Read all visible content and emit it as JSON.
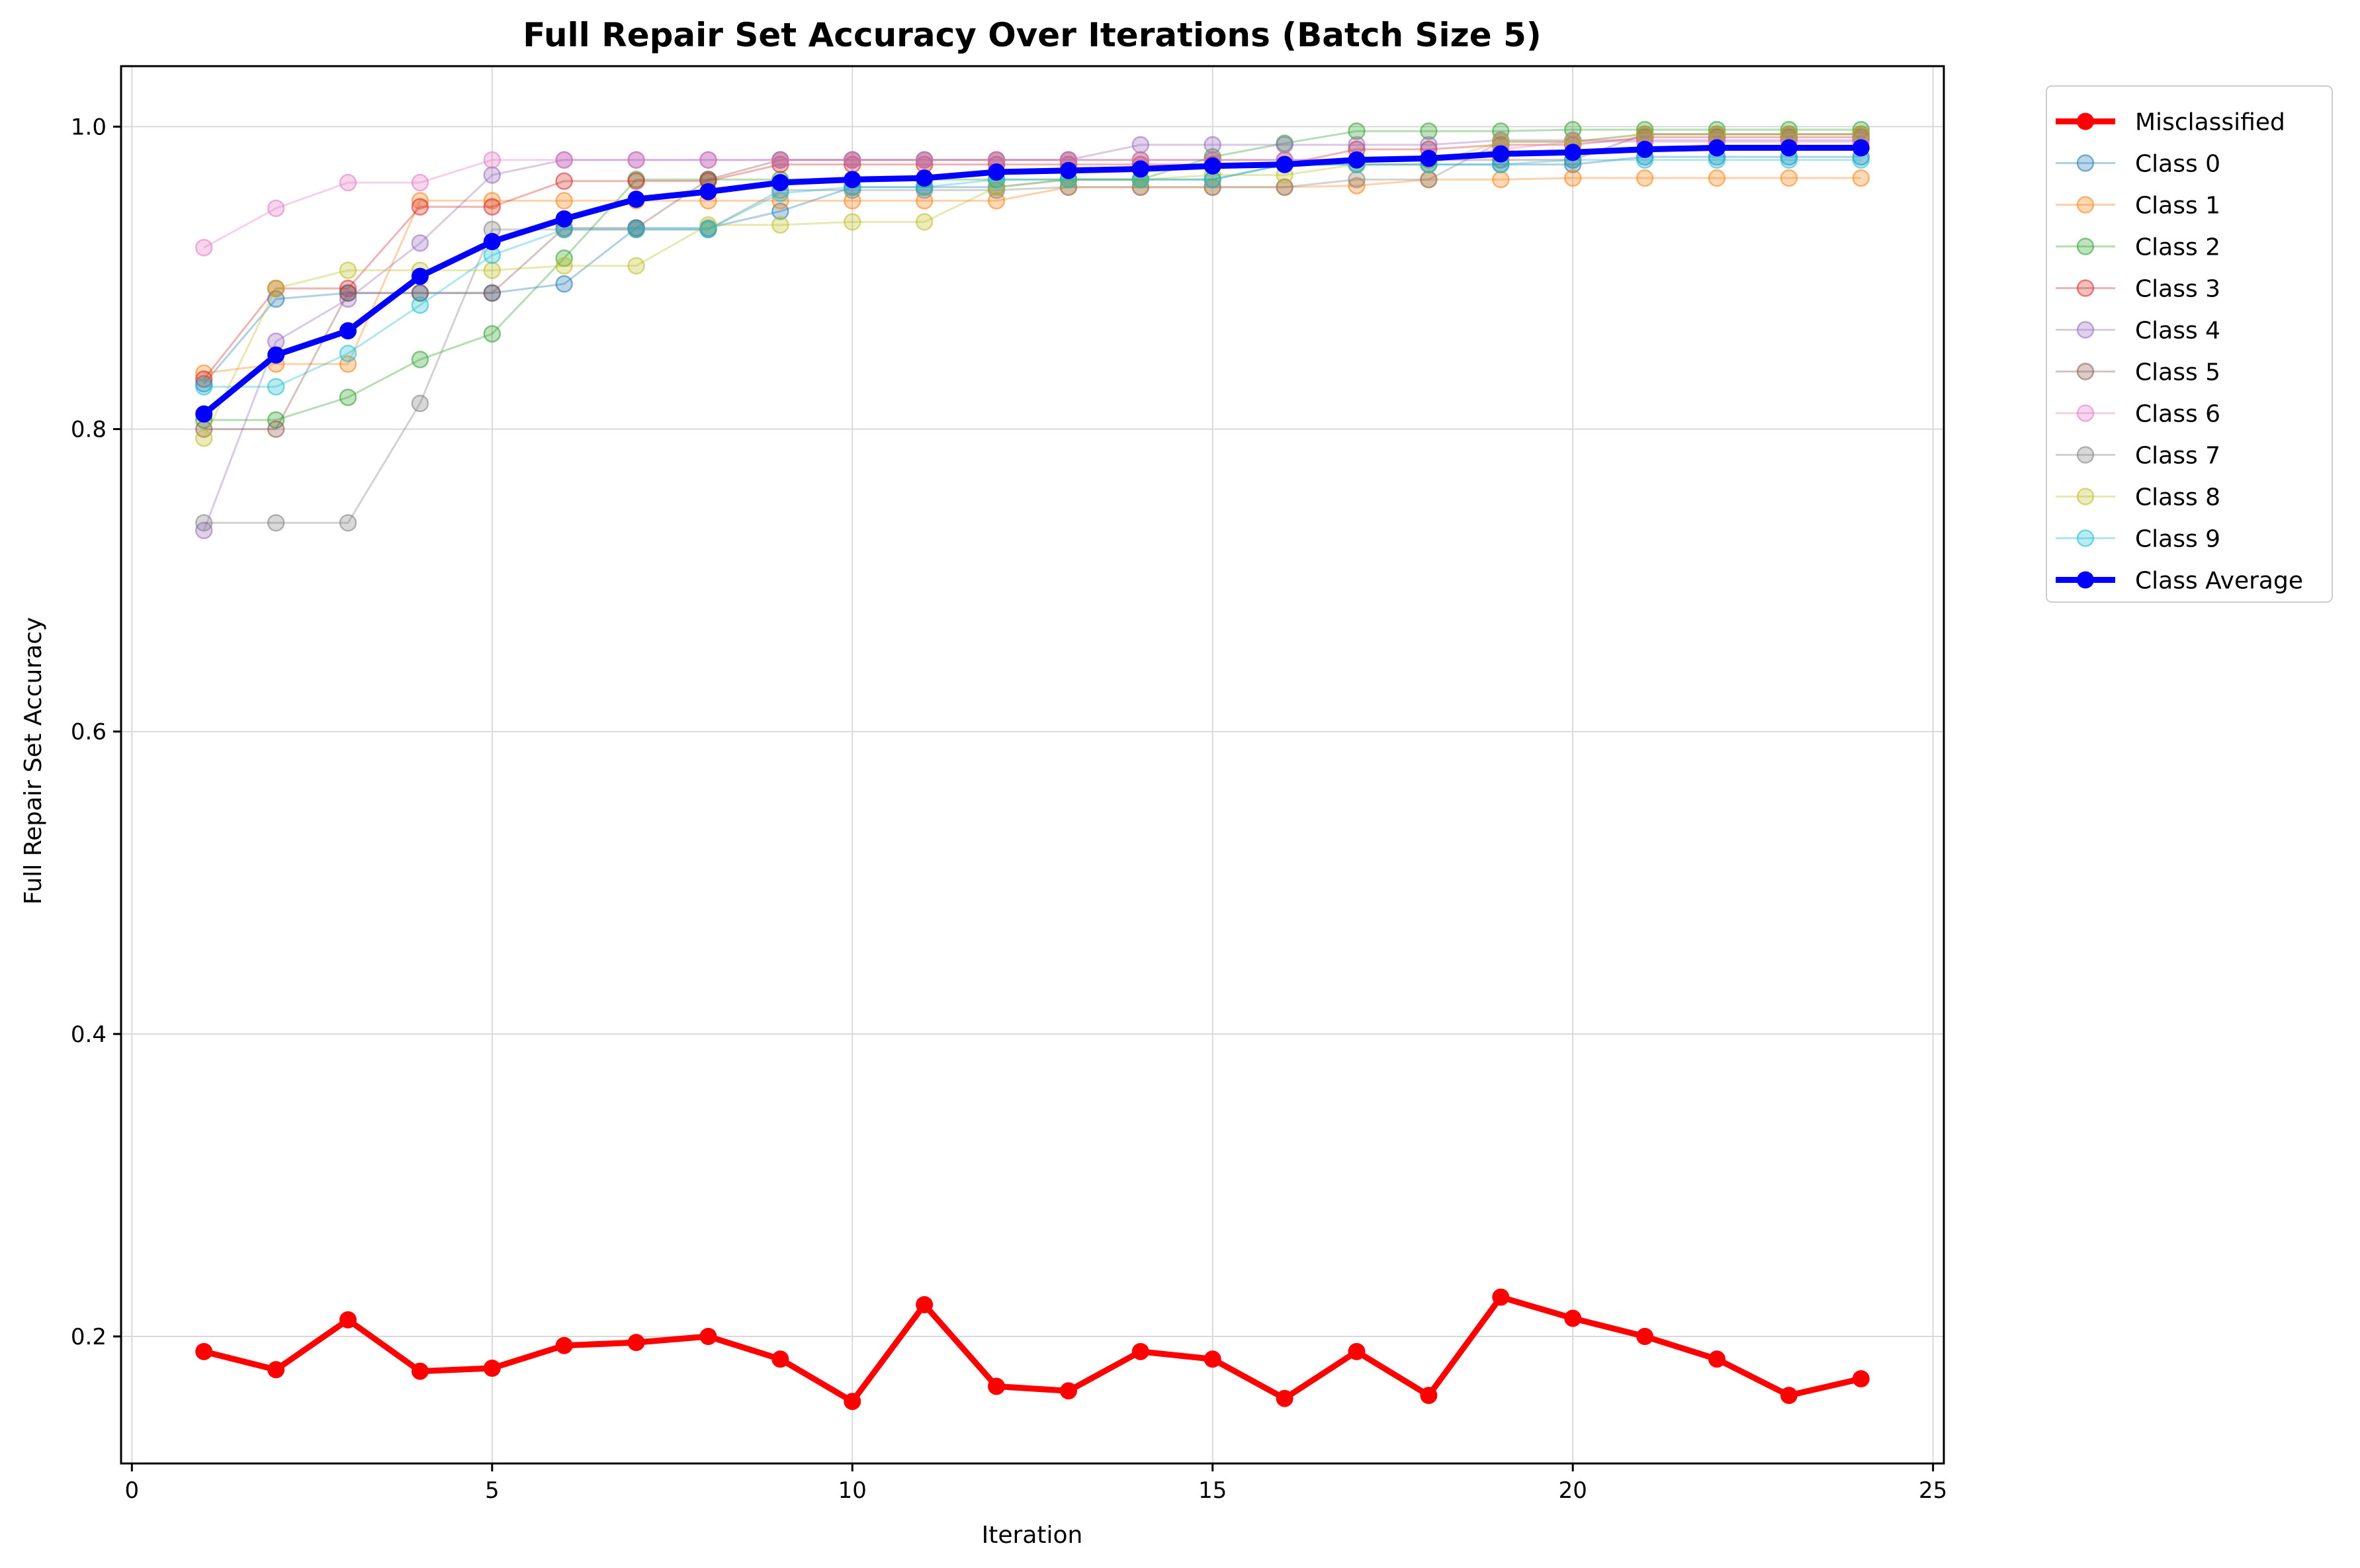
{
  "chart_data": {
    "type": "line",
    "title": "Full Repair Set Accuracy Over Iterations (Batch Size 5)",
    "xlabel": "Iteration",
    "ylabel": "Full Repair Set Accuracy",
    "xlim": [
      -0.15,
      25.15
    ],
    "ylim": [
      0.116,
      1.04
    ],
    "xticks": [
      0,
      5,
      10,
      15,
      20,
      25
    ],
    "xtick_labels": [
      "0",
      "5",
      "10",
      "15",
      "20",
      "25"
    ],
    "yticks": [
      0.2,
      0.4,
      0.6,
      0.8,
      1.0
    ],
    "ytick_labels": [
      "0.2",
      "0.4",
      "0.6",
      "0.8",
      "1.0"
    ],
    "grid": true,
    "legend_position": "outside-top-right",
    "x": [
      1,
      2,
      3,
      4,
      5,
      6,
      7,
      8,
      9,
      10,
      11,
      12,
      13,
      14,
      15,
      16,
      17,
      18,
      19,
      20,
      21,
      22,
      23,
      24
    ],
    "series": [
      {
        "name": "Misclassified",
        "color": "#ff0000",
        "emphasis": true,
        "values": [
          0.19,
          0.178,
          0.211,
          0.177,
          0.179,
          0.194,
          0.196,
          0.2,
          0.185,
          0.157,
          0.221,
          0.167,
          0.164,
          0.19,
          0.185,
          0.159,
          0.19,
          0.161,
          0.226,
          0.212,
          0.2,
          0.185,
          0.161,
          0.172
        ]
      },
      {
        "name": "Class 0",
        "color": "#1f77b4",
        "values": [
          0.83,
          0.886,
          0.89,
          0.89,
          0.89,
          0.896,
          0.933,
          0.933,
          0.944,
          0.96,
          0.96,
          0.96,
          0.965,
          0.965,
          0.965,
          0.975,
          0.975,
          0.975,
          0.975,
          0.975,
          0.98,
          0.98,
          0.98,
          0.98
        ]
      },
      {
        "name": "Class 1",
        "color": "#ff7f0e",
        "values": [
          0.837,
          0.843,
          0.843,
          0.951,
          0.951,
          0.951,
          0.951,
          0.951,
          0.951,
          0.951,
          0.951,
          0.951,
          0.96,
          0.96,
          0.96,
          0.96,
          0.961,
          0.965,
          0.965,
          0.966,
          0.966,
          0.966,
          0.966,
          0.966
        ]
      },
      {
        "name": "Class 2",
        "color": "#2ca02c",
        "values": [
          0.806,
          0.806,
          0.821,
          0.846,
          0.863,
          0.913,
          0.965,
          0.965,
          0.965,
          0.965,
          0.965,
          0.965,
          0.965,
          0.965,
          0.98,
          0.989,
          0.997,
          0.997,
          0.997,
          0.998,
          0.998,
          0.998,
          0.998,
          0.998
        ]
      },
      {
        "name": "Class 3",
        "color": "#d62728",
        "values": [
          0.833,
          0.893,
          0.893,
          0.947,
          0.947,
          0.964,
          0.964,
          0.964,
          0.975,
          0.975,
          0.975,
          0.975,
          0.975,
          0.975,
          0.975,
          0.975,
          0.985,
          0.985,
          0.988,
          0.988,
          0.993,
          0.993,
          0.993,
          0.993
        ]
      },
      {
        "name": "Class 4",
        "color": "#9467bd",
        "values": [
          0.733,
          0.858,
          0.886,
          0.923,
          0.968,
          0.978,
          0.978,
          0.978,
          0.978,
          0.978,
          0.978,
          0.978,
          0.978,
          0.988,
          0.988,
          0.988,
          0.988,
          0.988,
          0.991,
          0.991,
          0.991,
          0.991,
          0.991,
          0.991
        ]
      },
      {
        "name": "Class 5",
        "color": "#8c564b",
        "values": [
          0.8,
          0.8,
          0.89,
          0.89,
          0.89,
          0.933,
          0.933,
          0.965,
          0.978,
          0.978,
          0.978,
          0.978,
          0.978,
          0.978,
          0.978,
          0.978,
          0.978,
          0.978,
          0.978,
          0.978,
          0.995,
          0.995,
          0.995,
          0.995
        ]
      },
      {
        "name": "Class 6",
        "color": "#e377c2",
        "values": [
          0.92,
          0.946,
          0.963,
          0.963,
          0.978,
          0.978,
          0.978,
          0.978,
          0.978,
          0.978,
          0.978,
          0.978,
          0.978,
          0.978,
          0.978,
          0.978,
          0.978,
          0.978,
          0.985,
          0.99,
          0.99,
          0.99,
          0.99,
          0.99
        ]
      },
      {
        "name": "Class 7",
        "color": "#7f7f7f",
        "values": [
          0.738,
          0.738,
          0.738,
          0.817,
          0.932,
          0.932,
          0.932,
          0.932,
          0.958,
          0.958,
          0.958,
          0.958,
          0.96,
          0.96,
          0.96,
          0.96,
          0.965,
          0.965,
          0.99,
          0.99,
          0.995,
          0.995,
          0.995,
          0.995
        ]
      },
      {
        "name": "Class 8",
        "color": "#bcbd22",
        "values": [
          0.794,
          0.893,
          0.905,
          0.905,
          0.905,
          0.908,
          0.908,
          0.935,
          0.935,
          0.937,
          0.937,
          0.96,
          0.965,
          0.965,
          0.968,
          0.968,
          0.975,
          0.975,
          0.99,
          0.99,
          0.995,
          0.995,
          0.995,
          0.995
        ]
      },
      {
        "name": "Class 9",
        "color": "#17becf",
        "values": [
          0.828,
          0.828,
          0.85,
          0.882,
          0.915,
          0.932,
          0.932,
          0.932,
          0.956,
          0.96,
          0.96,
          0.965,
          0.965,
          0.965,
          0.965,
          0.975,
          0.975,
          0.975,
          0.975,
          0.978,
          0.978,
          0.978,
          0.978,
          0.978
        ]
      },
      {
        "name": "Class Average",
        "color": "#0000ff",
        "emphasis": true,
        "values": [
          0.81,
          0.849,
          0.865,
          0.901,
          0.924,
          0.939,
          0.952,
          0.957,
          0.963,
          0.965,
          0.966,
          0.97,
          0.971,
          0.972,
          0.974,
          0.975,
          0.978,
          0.979,
          0.982,
          0.983,
          0.985,
          0.986,
          0.986,
          0.986
        ]
      }
    ]
  }
}
